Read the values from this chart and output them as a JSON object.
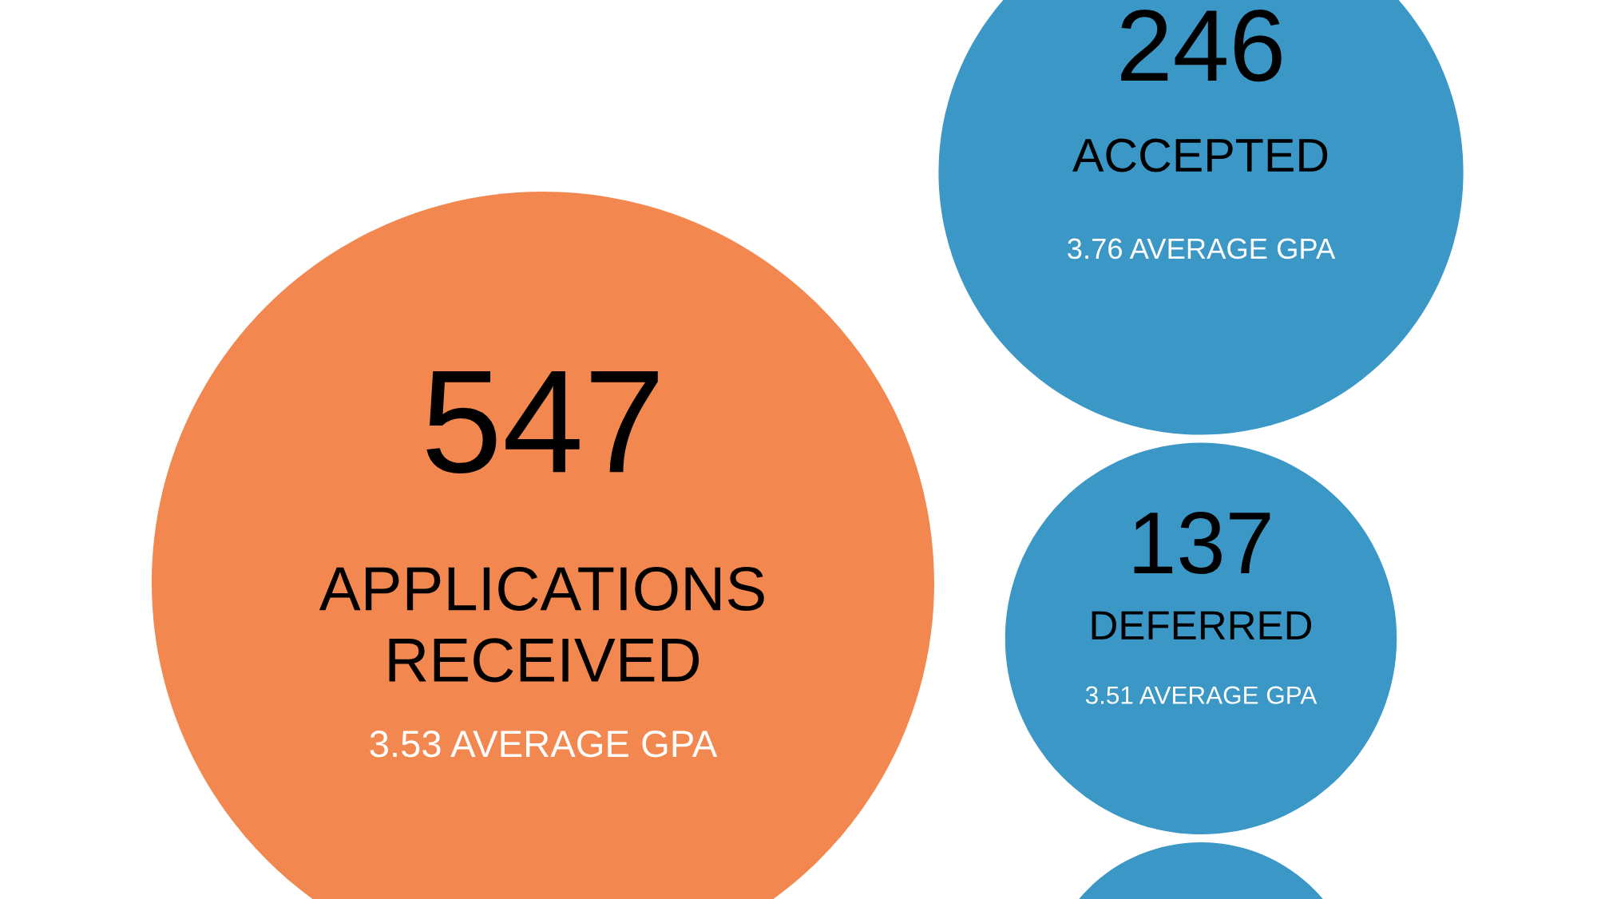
{
  "chart_data": {
    "type": "other",
    "categories": [
      "APPLICATIONS\nRECEIVED",
      "ACCEPTED",
      "DEFERRED"
    ],
    "values": [
      547,
      246,
      137
    ],
    "data_labels": true,
    "colors": [
      "#f2874f",
      "#3a97c6",
      "#3a97c6"
    ],
    "annotations": [
      "3.53 AVERAGE GPA",
      "3.76 AVERAGE GPA",
      "3.51 AVERAGE GPA"
    ]
  }
}
